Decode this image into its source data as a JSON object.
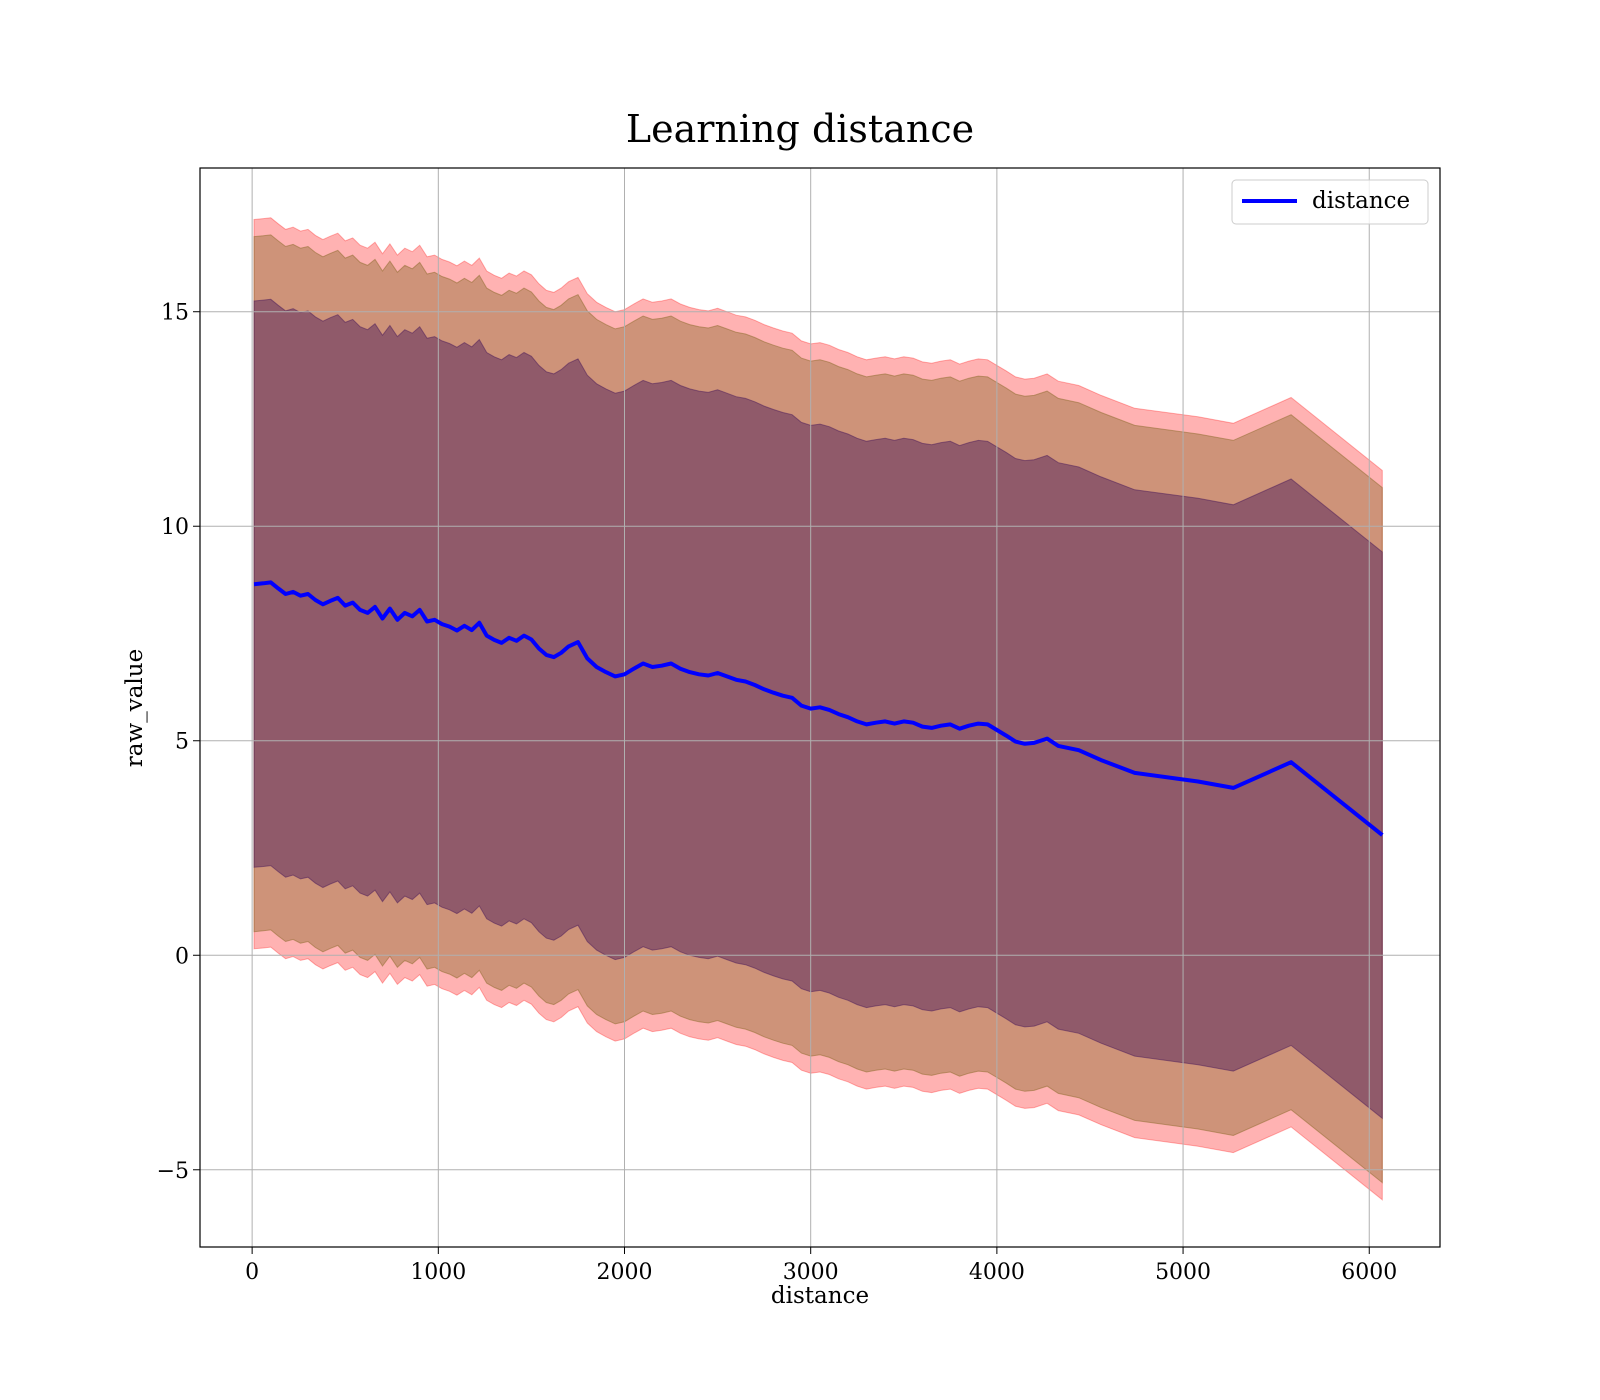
{
  "chart_data": {
    "type": "line",
    "title": "Learning distance",
    "xlabel": "distance",
    "ylabel": "raw_value",
    "xlim": [
      -280,
      6380
    ],
    "ylim": [
      -6.8,
      18.35
    ],
    "xticks": [
      0,
      1000,
      2000,
      3000,
      4000,
      5000,
      6000
    ],
    "xtick_labels": [
      "0",
      "1000",
      "2000",
      "3000",
      "4000",
      "5000",
      "6000"
    ],
    "yticks": [
      -5,
      0,
      5,
      10,
      15
    ],
    "ytick_labels": [
      "−5",
      "0",
      "5",
      "10",
      "15"
    ],
    "grid": true,
    "legend": {
      "position": "top-right",
      "entries": [
        "distance"
      ]
    },
    "series": [
      {
        "name": "distance",
        "color": "#0000ff",
        "x": [
          10,
          60,
          100,
          140,
          180,
          220,
          260,
          300,
          340,
          380,
          420,
          460,
          500,
          540,
          580,
          620,
          660,
          700,
          740,
          780,
          820,
          860,
          900,
          940,
          980,
          1020,
          1060,
          1100,
          1140,
          1180,
          1220,
          1260,
          1300,
          1340,
          1380,
          1420,
          1460,
          1500,
          1540,
          1580,
          1620,
          1660,
          1700,
          1750,
          1800,
          1850,
          1900,
          1950,
          2000,
          2050,
          2100,
          2150,
          2200,
          2250,
          2300,
          2350,
          2400,
          2450,
          2500,
          2550,
          2600,
          2650,
          2700,
          2750,
          2800,
          2850,
          2900,
          2950,
          3000,
          3050,
          3100,
          3150,
          3200,
          3250,
          3300,
          3350,
          3400,
          3450,
          3500,
          3550,
          3600,
          3650,
          3700,
          3750,
          3800,
          3850,
          3900,
          3950,
          4000,
          4050,
          4100,
          4150,
          4200,
          4270,
          4330,
          4440,
          4560,
          4740,
          5080,
          5270,
          5580,
          6070
        ],
        "values": [
          8.65,
          8.67,
          8.69,
          8.55,
          8.42,
          8.47,
          8.38,
          8.42,
          8.28,
          8.18,
          8.26,
          8.33,
          8.15,
          8.22,
          8.05,
          7.98,
          8.12,
          7.85,
          8.08,
          7.82,
          7.98,
          7.9,
          8.05,
          7.78,
          7.82,
          7.72,
          7.66,
          7.57,
          7.68,
          7.58,
          7.75,
          7.45,
          7.35,
          7.28,
          7.4,
          7.33,
          7.45,
          7.36,
          7.15,
          7.0,
          6.95,
          7.05,
          7.2,
          7.3,
          6.92,
          6.72,
          6.6,
          6.5,
          6.55,
          6.68,
          6.8,
          6.72,
          6.75,
          6.8,
          6.68,
          6.6,
          6.55,
          6.52,
          6.58,
          6.5,
          6.42,
          6.38,
          6.3,
          6.2,
          6.12,
          6.05,
          6.0,
          5.82,
          5.75,
          5.78,
          5.72,
          5.62,
          5.55,
          5.45,
          5.38,
          5.42,
          5.45,
          5.4,
          5.45,
          5.42,
          5.33,
          5.3,
          5.35,
          5.38,
          5.28,
          5.35,
          5.4,
          5.38,
          5.25,
          5.12,
          4.98,
          4.93,
          4.95,
          5.05,
          4.88,
          4.78,
          4.55,
          4.25,
          4.05,
          3.9,
          4.5,
          2.8
        ],
        "band_inner_halfwidth": 6.6,
        "band_middle_halfwidth": 8.1,
        "band_outer_halfwidth": 8.5
      }
    ]
  }
}
